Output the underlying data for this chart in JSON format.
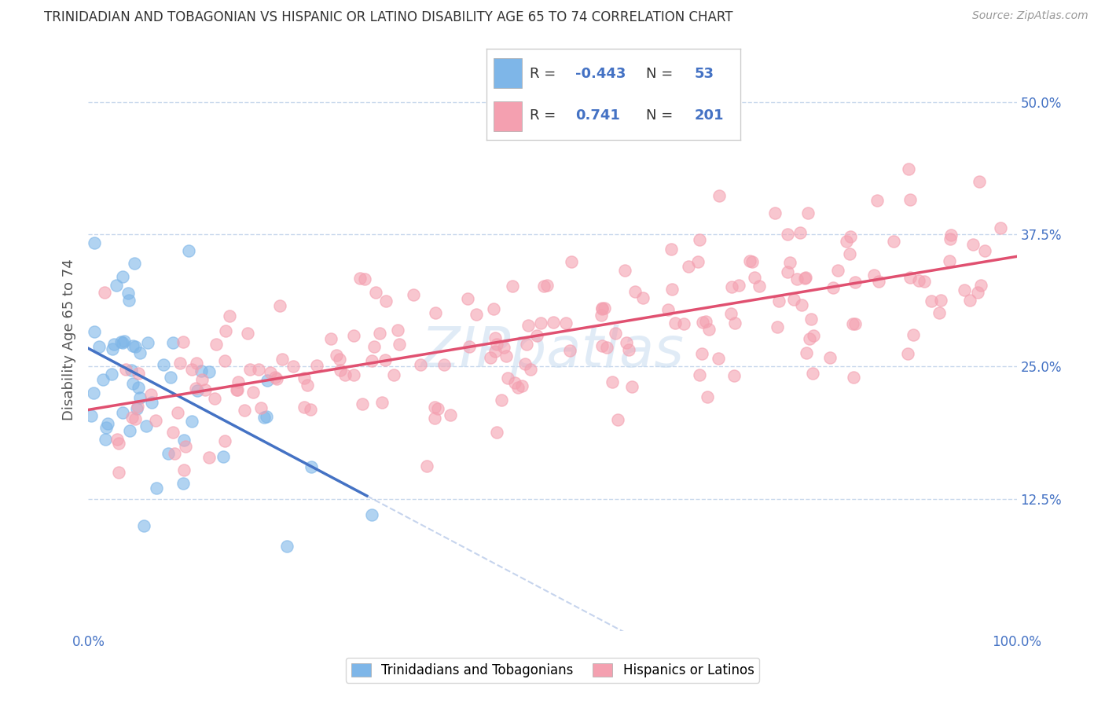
{
  "title": "TRINIDADIAN AND TOBAGONIAN VS HISPANIC OR LATINO DISABILITY AGE 65 TO 74 CORRELATION CHART",
  "source": "Source: ZipAtlas.com",
  "ylabel": "Disability Age 65 to 74",
  "xlim": [
    0.0,
    100.0
  ],
  "ylim": [
    0.0,
    55.0
  ],
  "yticks": [
    12.5,
    25.0,
    37.5,
    50.0
  ],
  "xticks": [
    0.0,
    100.0
  ],
  "xtick_labels": [
    "0.0%",
    "100.0%"
  ],
  "ytick_labels": [
    "12.5%",
    "25.0%",
    "37.5%",
    "50.0%"
  ],
  "blue_color": "#7EB6E8",
  "pink_color": "#F4A0B0",
  "blue_line_color": "#4472C4",
  "pink_line_color": "#E05070",
  "R_blue": -0.443,
  "N_blue": 53,
  "R_pink": 0.741,
  "N_pink": 201,
  "legend_label_blue": "Trinidadians and Tobagonians",
  "legend_label_pink": "Hispanics or Latinos",
  "watermark": "ZIPpatlas",
  "background_color": "#FFFFFF",
  "grid_color": "#C8D8EC",
  "tick_color": "#4472C4"
}
